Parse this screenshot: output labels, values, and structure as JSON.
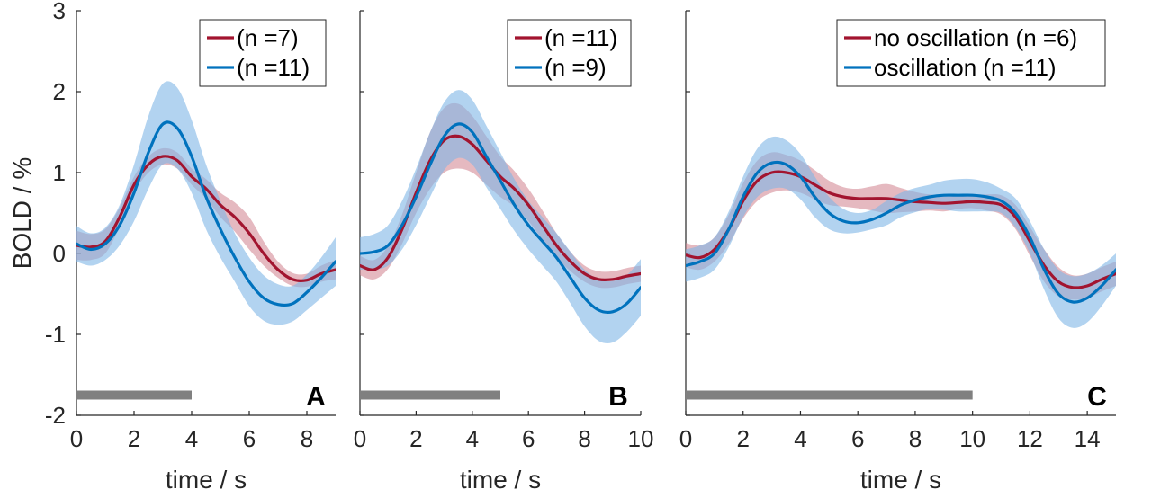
{
  "chart_data": {
    "type": "line",
    "ylabel": "BOLD / %",
    "ylim": [
      -2,
      3
    ],
    "yticks": [
      "-2",
      "-1",
      "0",
      "1",
      "2",
      "3"
    ],
    "colors": {
      "red": "#a2142f",
      "blue": "#0072bd"
    },
    "panels": [
      {
        "label": "A",
        "xlabel": "time / s",
        "xlim": [
          0,
          9
        ],
        "xticks": [
          "0",
          "2",
          "4",
          "6",
          "8"
        ],
        "stim_bar": [
          0,
          4
        ],
        "series": [
          {
            "name": "(n =7)",
            "color": "red",
            "x": [
              0,
              0.5,
              1,
              1.5,
              2,
              2.5,
              3,
              3.5,
              4,
              4.5,
              5,
              5.5,
              6,
              6.5,
              7,
              7.5,
              8,
              8.5,
              9
            ],
            "mean": [
              0.1,
              0.08,
              0.15,
              0.45,
              0.85,
              1.1,
              1.2,
              1.15,
              0.95,
              0.8,
              0.6,
              0.45,
              0.25,
              0.0,
              -0.2,
              -0.32,
              -0.33,
              -0.25,
              -0.2
            ],
            "sem": [
              0.18,
              0.16,
              0.15,
              0.12,
              0.1,
              0.1,
              0.1,
              0.1,
              0.1,
              0.12,
              0.15,
              0.18,
              0.2,
              0.15,
              0.1,
              0.08,
              0.08,
              0.1,
              0.12
            ]
          },
          {
            "name": "(n =11)",
            "color": "blue",
            "x": [
              0,
              0.5,
              1,
              1.5,
              2,
              2.5,
              3,
              3.5,
              4,
              4.5,
              5,
              5.5,
              6,
              6.5,
              7,
              7.5,
              8,
              8.5,
              9
            ],
            "mean": [
              0.12,
              0.05,
              0.12,
              0.35,
              0.75,
              1.25,
              1.6,
              1.55,
              1.2,
              0.7,
              0.3,
              -0.05,
              -0.35,
              -0.55,
              -0.63,
              -0.62,
              -0.48,
              -0.3,
              -0.1
            ],
            "sem": [
              0.22,
              0.2,
              0.2,
              0.25,
              0.35,
              0.45,
              0.5,
              0.5,
              0.45,
              0.4,
              0.35,
              0.3,
              0.3,
              0.28,
              0.25,
              0.22,
              0.22,
              0.25,
              0.3
            ]
          }
        ]
      },
      {
        "label": "B",
        "xlabel": "time / s",
        "xlim": [
          0,
          10
        ],
        "xticks": [
          "0",
          "2",
          "4",
          "6",
          "8",
          "10"
        ],
        "stim_bar": [
          0,
          5
        ],
        "series": [
          {
            "name": "(n =11)",
            "color": "red",
            "x": [
              0,
              0.5,
              1,
              1.5,
              2,
              2.5,
              3,
              3.5,
              4,
              4.5,
              5,
              5.5,
              6,
              6.5,
              7,
              7.5,
              8,
              8.5,
              9,
              9.5,
              10
            ],
            "mean": [
              -0.15,
              -0.2,
              -0.05,
              0.3,
              0.75,
              1.15,
              1.4,
              1.45,
              1.35,
              1.15,
              0.95,
              0.8,
              0.6,
              0.35,
              0.1,
              -0.1,
              -0.25,
              -0.32,
              -0.32,
              -0.28,
              -0.25
            ],
            "sem": [
              0.12,
              0.12,
              0.14,
              0.18,
              0.25,
              0.35,
              0.4,
              0.4,
              0.35,
              0.3,
              0.25,
              0.22,
              0.2,
              0.18,
              0.15,
              0.12,
              0.1,
              0.1,
              0.1,
              0.1,
              0.1
            ]
          },
          {
            "name": "(n =9)",
            "color": "blue",
            "x": [
              0,
              0.5,
              1,
              1.5,
              2,
              2.5,
              3,
              3.5,
              4,
              4.5,
              5,
              5.5,
              6,
              6.5,
              7,
              7.5,
              8,
              8.5,
              9,
              9.5,
              10
            ],
            "mean": [
              0.0,
              0.02,
              0.1,
              0.35,
              0.7,
              1.1,
              1.45,
              1.6,
              1.5,
              1.2,
              0.9,
              0.6,
              0.35,
              0.15,
              -0.05,
              -0.3,
              -0.55,
              -0.7,
              -0.72,
              -0.62,
              -0.42
            ],
            "sem": [
              0.2,
              0.22,
              0.25,
              0.3,
              0.35,
              0.4,
              0.42,
              0.42,
              0.4,
              0.38,
              0.35,
              0.32,
              0.3,
              0.3,
              0.3,
              0.32,
              0.35,
              0.38,
              0.38,
              0.35,
              0.35
            ]
          }
        ]
      },
      {
        "label": "C",
        "xlabel": "time / s",
        "xlim": [
          0,
          15
        ],
        "xticks": [
          "0",
          "2",
          "4",
          "6",
          "8",
          "10",
          "12",
          "14"
        ],
        "stim_bar": [
          0,
          10
        ],
        "series": [
          {
            "name": "no oscillation (n =6)",
            "color": "red",
            "x": [
              0,
              0.5,
              1,
              1.5,
              2,
              2.5,
              3,
              3.5,
              4,
              4.5,
              5,
              5.5,
              6,
              6.5,
              7,
              7.5,
              8,
              8.5,
              9,
              9.5,
              10,
              10.5,
              11,
              11.5,
              12,
              12.5,
              13,
              13.5,
              14,
              14.5,
              15
            ],
            "mean": [
              -0.02,
              -0.05,
              0.05,
              0.3,
              0.65,
              0.9,
              1.0,
              1.0,
              0.95,
              0.85,
              0.75,
              0.7,
              0.68,
              0.68,
              0.68,
              0.66,
              0.64,
              0.63,
              0.62,
              0.63,
              0.64,
              0.63,
              0.6,
              0.45,
              0.15,
              -0.15,
              -0.35,
              -0.42,
              -0.4,
              -0.32,
              -0.25
            ],
            "sem": [
              0.15,
              0.15,
              0.15,
              0.18,
              0.22,
              0.25,
              0.25,
              0.22,
              0.2,
              0.18,
              0.15,
              0.12,
              0.12,
              0.15,
              0.18,
              0.15,
              0.12,
              0.1,
              0.1,
              0.08,
              0.08,
              0.1,
              0.12,
              0.15,
              0.18,
              0.2,
              0.18,
              0.15,
              0.15,
              0.15,
              0.15
            ]
          },
          {
            "name": "oscillation (n =11)",
            "color": "blue",
            "x": [
              0,
              0.5,
              1,
              1.5,
              2,
              2.5,
              3,
              3.5,
              4,
              4.5,
              5,
              5.5,
              6,
              6.5,
              7,
              7.5,
              8,
              8.5,
              9,
              9.5,
              10,
              10.5,
              11,
              11.5,
              12,
              12.5,
              13,
              13.5,
              14,
              14.5,
              15
            ],
            "mean": [
              -0.15,
              -0.1,
              0.0,
              0.3,
              0.7,
              1.0,
              1.12,
              1.1,
              0.95,
              0.7,
              0.5,
              0.4,
              0.38,
              0.42,
              0.5,
              0.6,
              0.66,
              0.7,
              0.72,
              0.72,
              0.72,
              0.7,
              0.65,
              0.5,
              0.2,
              -0.2,
              -0.5,
              -0.6,
              -0.55,
              -0.4,
              -0.2
            ],
            "sem": [
              0.2,
              0.2,
              0.2,
              0.22,
              0.25,
              0.3,
              0.32,
              0.3,
              0.28,
              0.25,
              0.2,
              0.15,
              0.12,
              0.12,
              0.15,
              0.15,
              0.15,
              0.15,
              0.18,
              0.2,
              0.2,
              0.18,
              0.15,
              0.18,
              0.2,
              0.25,
              0.3,
              0.32,
              0.3,
              0.25,
              0.2
            ]
          }
        ]
      }
    ]
  }
}
